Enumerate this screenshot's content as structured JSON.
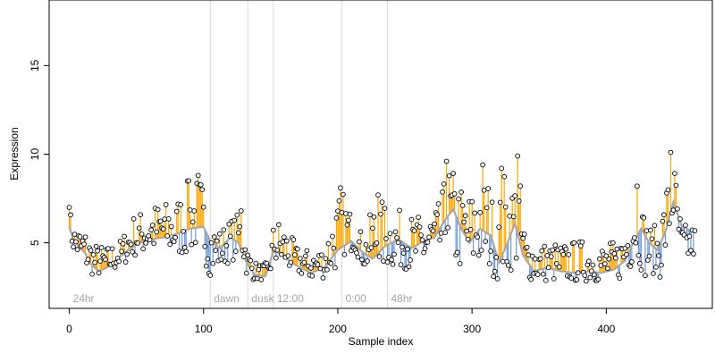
{
  "chart_data": {
    "type": "line",
    "title": "",
    "xlabel": "Sample index",
    "ylabel": "Expression",
    "xlim": [
      -15,
      479
    ],
    "ylim": [
      1.3,
      18.7
    ],
    "x_ticks": [
      0,
      100,
      200,
      300,
      400
    ],
    "y_ticks": [
      5,
      10,
      15
    ],
    "grid": false,
    "legend": "none",
    "colors": {
      "points": "#000000",
      "above_baseline": "#ffa500",
      "below_baseline": "#6f9ad8",
      "baseline_curve": "#a8a8a8",
      "section_divider": "#d9d9d9",
      "section_label": "#a6a6a6"
    },
    "section_markers": [
      {
        "x": 0,
        "label": "24hr"
      },
      {
        "x": 105,
        "label": "dawn"
      },
      {
        "x": 133,
        "label": "dusk"
      },
      {
        "x": 152,
        "label": "12:00"
      },
      {
        "x": 203,
        "label": "0:00"
      },
      {
        "x": 237,
        "label": "48hr"
      }
    ],
    "baseline_anchors": [
      {
        "x": 0,
        "y": 5.9
      },
      {
        "x": 3,
        "y": 5.2
      },
      {
        "x": 7,
        "y": 4.8
      },
      {
        "x": 12,
        "y": 4.4
      },
      {
        "x": 16,
        "y": 3.8
      },
      {
        "x": 22,
        "y": 3.4
      },
      {
        "x": 28,
        "y": 3.6
      },
      {
        "x": 36,
        "y": 4.1
      },
      {
        "x": 44,
        "y": 4.6
      },
      {
        "x": 52,
        "y": 5.0
      },
      {
        "x": 60,
        "y": 5.2
      },
      {
        "x": 70,
        "y": 5.3
      },
      {
        "x": 80,
        "y": 5.5
      },
      {
        "x": 90,
        "y": 5.8
      },
      {
        "x": 100,
        "y": 5.9
      },
      {
        "x": 105,
        "y": 5.1
      },
      {
        "x": 112,
        "y": 4.7
      },
      {
        "x": 120,
        "y": 5.3
      },
      {
        "x": 126,
        "y": 5.0
      },
      {
        "x": 132,
        "y": 3.9
      },
      {
        "x": 138,
        "y": 3.2
      },
      {
        "x": 146,
        "y": 3.1
      },
      {
        "x": 152,
        "y": 4.5
      },
      {
        "x": 158,
        "y": 4.4
      },
      {
        "x": 165,
        "y": 3.9
      },
      {
        "x": 172,
        "y": 3.6
      },
      {
        "x": 180,
        "y": 3.3
      },
      {
        "x": 190,
        "y": 3.6
      },
      {
        "x": 200,
        "y": 4.6
      },
      {
        "x": 210,
        "y": 5.1
      },
      {
        "x": 218,
        "y": 4.5
      },
      {
        "x": 226,
        "y": 4.1
      },
      {
        "x": 235,
        "y": 4.8
      },
      {
        "x": 245,
        "y": 5.2
      },
      {
        "x": 255,
        "y": 4.7
      },
      {
        "x": 264,
        "y": 5.1
      },
      {
        "x": 272,
        "y": 5.3
      },
      {
        "x": 280,
        "y": 6.3
      },
      {
        "x": 286,
        "y": 6.9
      },
      {
        "x": 292,
        "y": 5.8
      },
      {
        "x": 298,
        "y": 5.0
      },
      {
        "x": 306,
        "y": 5.8
      },
      {
        "x": 314,
        "y": 5.4
      },
      {
        "x": 320,
        "y": 3.9
      },
      {
        "x": 326,
        "y": 4.9
      },
      {
        "x": 332,
        "y": 6.1
      },
      {
        "x": 338,
        "y": 4.3
      },
      {
        "x": 346,
        "y": 3.4
      },
      {
        "x": 356,
        "y": 3.6
      },
      {
        "x": 366,
        "y": 3.4
      },
      {
        "x": 376,
        "y": 3.3
      },
      {
        "x": 386,
        "y": 3.4
      },
      {
        "x": 396,
        "y": 3.3
      },
      {
        "x": 406,
        "y": 3.5
      },
      {
        "x": 414,
        "y": 4.0
      },
      {
        "x": 420,
        "y": 5.0
      },
      {
        "x": 426,
        "y": 5.8
      },
      {
        "x": 432,
        "y": 5.0
      },
      {
        "x": 438,
        "y": 4.6
      },
      {
        "x": 444,
        "y": 5.6
      },
      {
        "x": 450,
        "y": 7.3
      },
      {
        "x": 456,
        "y": 6.0
      },
      {
        "x": 462,
        "y": 5.7
      },
      {
        "x": 466,
        "y": 5.6
      }
    ],
    "series_profile": [
      {
        "x": 0,
        "lo": 5.0,
        "hi": 7.0
      },
      {
        "x": 4,
        "lo": 4.3,
        "hi": 6.0
      },
      {
        "x": 12,
        "lo": 3.5,
        "hi": 5.8
      },
      {
        "x": 18,
        "lo": 3.1,
        "hi": 5.0
      },
      {
        "x": 28,
        "lo": 3.2,
        "hi": 4.8
      },
      {
        "x": 38,
        "lo": 3.6,
        "hi": 5.2
      },
      {
        "x": 48,
        "lo": 4.2,
        "hi": 6.6
      },
      {
        "x": 58,
        "lo": 4.4,
        "hi": 7.0
      },
      {
        "x": 68,
        "lo": 4.5,
        "hi": 7.4
      },
      {
        "x": 78,
        "lo": 4.2,
        "hi": 7.3
      },
      {
        "x": 88,
        "lo": 4.3,
        "hi": 8.5
      },
      {
        "x": 98,
        "lo": 4.8,
        "hi": 8.8
      },
      {
        "x": 104,
        "lo": 3.1,
        "hi": 6.5
      },
      {
        "x": 112,
        "lo": 3.6,
        "hi": 5.8
      },
      {
        "x": 122,
        "lo": 4.0,
        "hi": 6.5
      },
      {
        "x": 128,
        "lo": 4.5,
        "hi": 6.8
      },
      {
        "x": 133,
        "lo": 2.9,
        "hi": 4.8
      },
      {
        "x": 140,
        "lo": 2.9,
        "hi": 3.8
      },
      {
        "x": 148,
        "lo": 2.9,
        "hi": 3.9
      },
      {
        "x": 153,
        "lo": 3.6,
        "hi": 6.6
      },
      {
        "x": 160,
        "lo": 3.5,
        "hi": 6.1
      },
      {
        "x": 170,
        "lo": 3.2,
        "hi": 4.8
      },
      {
        "x": 180,
        "lo": 2.9,
        "hi": 4.6
      },
      {
        "x": 190,
        "lo": 3.0,
        "hi": 4.9
      },
      {
        "x": 198,
        "lo": 3.4,
        "hi": 7.2
      },
      {
        "x": 203,
        "lo": 4.2,
        "hi": 8.1
      },
      {
        "x": 212,
        "lo": 4.6,
        "hi": 6.3
      },
      {
        "x": 220,
        "lo": 3.5,
        "hi": 5.4
      },
      {
        "x": 228,
        "lo": 3.4,
        "hi": 7.8
      },
      {
        "x": 237,
        "lo": 3.6,
        "hi": 7.1
      },
      {
        "x": 248,
        "lo": 3.6,
        "hi": 6.8
      },
      {
        "x": 258,
        "lo": 3.3,
        "hi": 6.5
      },
      {
        "x": 268,
        "lo": 3.6,
        "hi": 6.9
      },
      {
        "x": 276,
        "lo": 3.8,
        "hi": 7.3
      },
      {
        "x": 282,
        "lo": 4.3,
        "hi": 9.6
      },
      {
        "x": 288,
        "lo": 3.4,
        "hi": 9.0
      },
      {
        "x": 294,
        "lo": 3.5,
        "hi": 8.0
      },
      {
        "x": 300,
        "lo": 3.3,
        "hi": 8.0
      },
      {
        "x": 306,
        "lo": 3.5,
        "hi": 9.4
      },
      {
        "x": 312,
        "lo": 3.5,
        "hi": 8.8
      },
      {
        "x": 318,
        "lo": 2.9,
        "hi": 6.6
      },
      {
        "x": 324,
        "lo": 3.0,
        "hi": 9.1
      },
      {
        "x": 330,
        "lo": 3.5,
        "hi": 8.6
      },
      {
        "x": 334,
        "lo": 3.6,
        "hi": 9.9
      },
      {
        "x": 340,
        "lo": 2.9,
        "hi": 5.6
      },
      {
        "x": 350,
        "lo": 2.8,
        "hi": 5.0
      },
      {
        "x": 360,
        "lo": 2.8,
        "hi": 5.1
      },
      {
        "x": 370,
        "lo": 2.8,
        "hi": 5.0
      },
      {
        "x": 380,
        "lo": 2.8,
        "hi": 5.2
      },
      {
        "x": 390,
        "lo": 2.8,
        "hi": 5.0
      },
      {
        "x": 400,
        "lo": 2.8,
        "hi": 5.0
      },
      {
        "x": 410,
        "lo": 2.9,
        "hi": 5.2
      },
      {
        "x": 418,
        "lo": 3.5,
        "hi": 7.2
      },
      {
        "x": 422,
        "lo": 4.4,
        "hi": 8.2
      },
      {
        "x": 428,
        "lo": 3.0,
        "hi": 7.0
      },
      {
        "x": 434,
        "lo": 3.3,
        "hi": 5.8
      },
      {
        "x": 440,
        "lo": 3.0,
        "hi": 6.4
      },
      {
        "x": 446,
        "lo": 4.6,
        "hi": 8.9
      },
      {
        "x": 450,
        "lo": 6.0,
        "hi": 10.1
      },
      {
        "x": 456,
        "lo": 3.6,
        "hi": 6.1
      },
      {
        "x": 466,
        "lo": 4.2,
        "hi": 6.0
      }
    ],
    "sample_count": 466,
    "peaks": [
      {
        "x": 0,
        "y": 7.0
      },
      {
        "x": 96,
        "y": 8.8
      },
      {
        "x": 89,
        "y": 8.5
      },
      {
        "x": 128,
        "y": 6.8
      },
      {
        "x": 202,
        "y": 8.1
      },
      {
        "x": 230,
        "y": 7.7
      },
      {
        "x": 281,
        "y": 9.6
      },
      {
        "x": 308,
        "y": 9.4
      },
      {
        "x": 322,
        "y": 9.2
      },
      {
        "x": 334,
        "y": 9.9
      },
      {
        "x": 423,
        "y": 8.2
      },
      {
        "x": 448,
        "y": 10.1
      }
    ]
  }
}
